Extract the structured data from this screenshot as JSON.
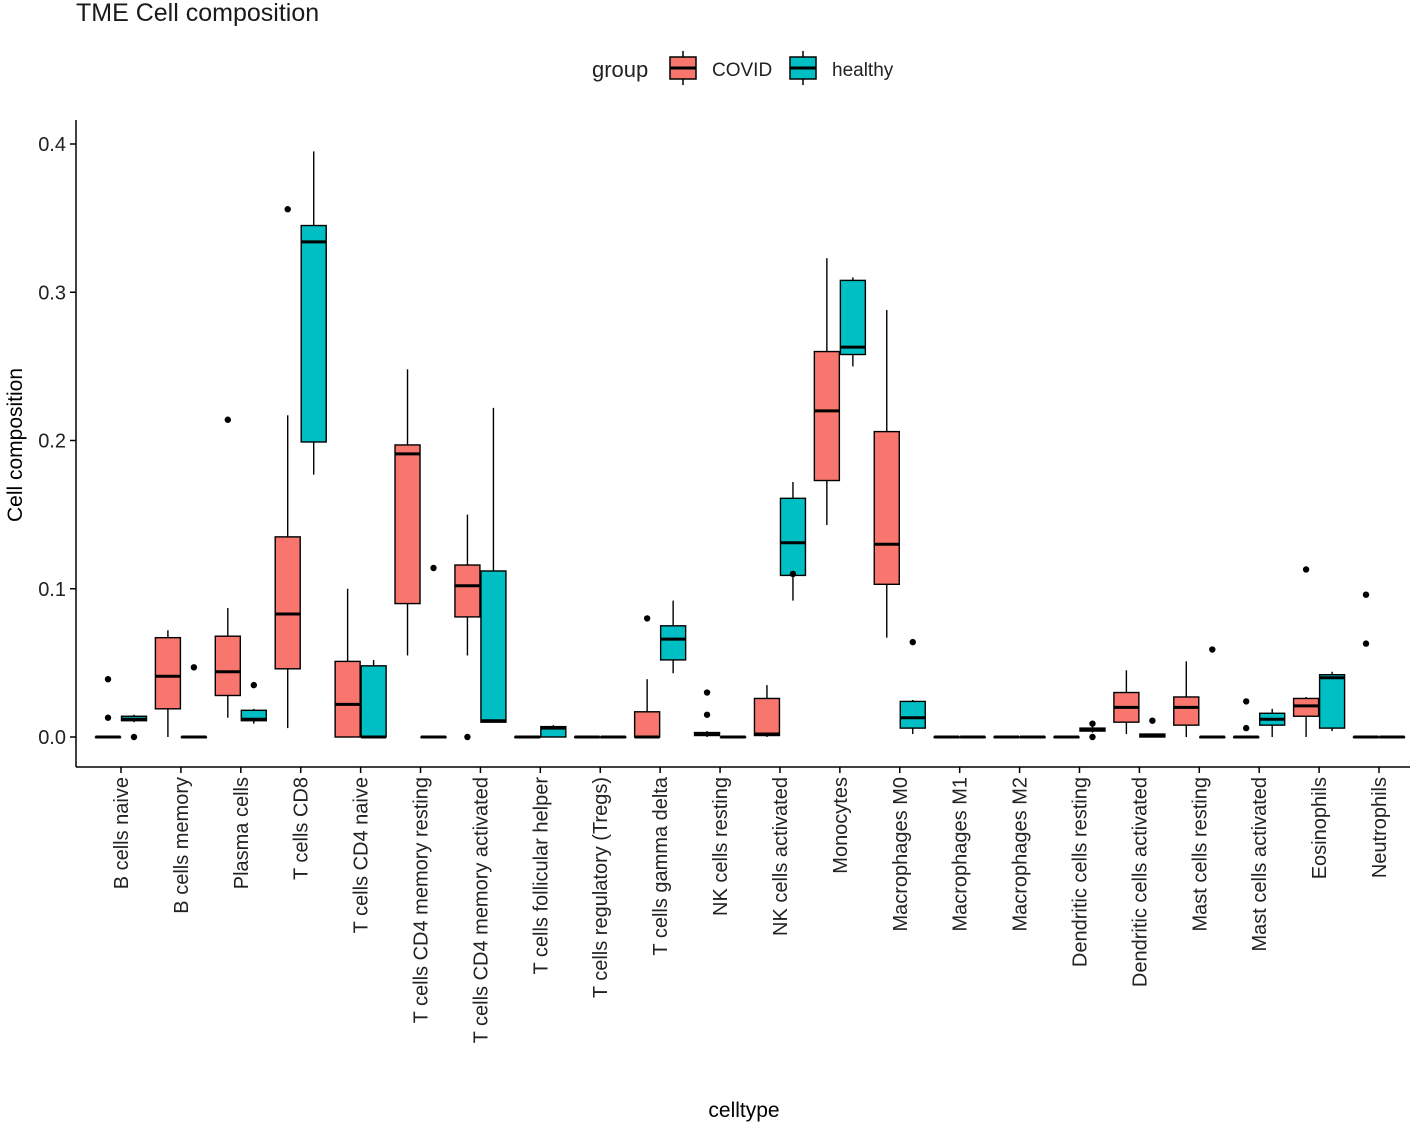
{
  "chart_data": {
    "type": "boxplot",
    "title": "TME Cell composition",
    "xlabel": "celltype",
    "ylabel": "Cell composition",
    "ylim": [
      -0.02,
      0.42
    ],
    "yticks": [
      0.0,
      0.1,
      0.2,
      0.3,
      0.4
    ],
    "ytick_labels": [
      "0.0",
      "0.1",
      "0.2",
      "0.3",
      "0.4"
    ],
    "legend": {
      "title": "group",
      "position": "top",
      "entries": [
        {
          "name": "COVID",
          "color": "#F8766D"
        },
        {
          "name": "healthy",
          "color": "#00BFC4"
        }
      ]
    },
    "categories": [
      "B cells naive",
      "B cells memory",
      "Plasma cells",
      "T cells CD8",
      "T cells CD4 naive",
      "T cells CD4 memory resting",
      "T cells CD4 memory activated",
      "T cells follicular helper",
      "T cells regulatory (Tregs)",
      "T cells gamma delta",
      "NK cells resting",
      "NK cells activated",
      "Monocytes",
      "Macrophages M0",
      "Macrophages M1",
      "Macrophages M2",
      "Dendritic cells resting",
      "Dendritic cells activated",
      "Mast cells resting",
      "Mast cells activated",
      "Eosinophils",
      "Neutrophils"
    ],
    "series": [
      {
        "name": "COVID",
        "color": "#F8766D",
        "boxes": [
          {
            "lo": 0.0,
            "q1": 0.0,
            "med": 0.0,
            "q3": 0.0,
            "hi": 0.0,
            "out": [
              0.013,
              0.039
            ]
          },
          {
            "lo": 0.0,
            "q1": 0.019,
            "med": 0.041,
            "q3": 0.067,
            "hi": 0.072,
            "out": []
          },
          {
            "lo": 0.013,
            "q1": 0.028,
            "med": 0.044,
            "q3": 0.068,
            "hi": 0.087,
            "out": [
              0.214
            ]
          },
          {
            "lo": 0.006,
            "q1": 0.046,
            "med": 0.083,
            "q3": 0.135,
            "hi": 0.217,
            "out": [
              0.356
            ]
          },
          {
            "lo": 0.0,
            "q1": 0.0,
            "med": 0.022,
            "q3": 0.051,
            "hi": 0.1,
            "out": []
          },
          {
            "lo": 0.055,
            "q1": 0.09,
            "med": 0.191,
            "q3": 0.197,
            "hi": 0.248,
            "out": []
          },
          {
            "lo": 0.055,
            "q1": 0.081,
            "med": 0.102,
            "q3": 0.116,
            "hi": 0.15,
            "out": [
              0.0
            ]
          },
          {
            "lo": 0.0,
            "q1": 0.0,
            "med": 0.0,
            "q3": 0.0,
            "hi": 0.0,
            "out": []
          },
          {
            "lo": 0.0,
            "q1": 0.0,
            "med": 0.0,
            "q3": 0.0,
            "hi": 0.0,
            "out": []
          },
          {
            "lo": 0.0,
            "q1": 0.0,
            "med": 0.0,
            "q3": 0.017,
            "hi": 0.039,
            "out": [
              0.08
            ]
          },
          {
            "lo": 0.0,
            "q1": 0.001,
            "med": 0.002,
            "q3": 0.003,
            "hi": 0.004,
            "out": [
              0.015,
              0.03
            ]
          },
          {
            "lo": 0.0,
            "q1": 0.001,
            "med": 0.002,
            "q3": 0.026,
            "hi": 0.035,
            "out": []
          },
          {
            "lo": 0.143,
            "q1": 0.173,
            "med": 0.22,
            "q3": 0.26,
            "hi": 0.323,
            "out": []
          },
          {
            "lo": 0.067,
            "q1": 0.103,
            "med": 0.13,
            "q3": 0.206,
            "hi": 0.288,
            "out": []
          },
          {
            "lo": 0.0,
            "q1": 0.0,
            "med": 0.0,
            "q3": 0.0,
            "hi": 0.0,
            "out": []
          },
          {
            "lo": 0.0,
            "q1": 0.0,
            "med": 0.0,
            "q3": 0.0,
            "hi": 0.0,
            "out": []
          },
          {
            "lo": 0.0,
            "q1": 0.0,
            "med": 0.0,
            "q3": 0.0,
            "hi": 0.0,
            "out": []
          },
          {
            "lo": 0.002,
            "q1": 0.01,
            "med": 0.02,
            "q3": 0.03,
            "hi": 0.045,
            "out": []
          },
          {
            "lo": 0.0,
            "q1": 0.008,
            "med": 0.02,
            "q3": 0.027,
            "hi": 0.051,
            "out": []
          },
          {
            "lo": 0.0,
            "q1": 0.0,
            "med": 0.0,
            "q3": 0.0,
            "hi": 0.0,
            "out": [
              0.006,
              0.024
            ]
          },
          {
            "lo": 0.0,
            "q1": 0.014,
            "med": 0.021,
            "q3": 0.026,
            "hi": 0.027,
            "out": [
              0.113
            ]
          },
          {
            "lo": 0.0,
            "q1": 0.0,
            "med": 0.0,
            "q3": 0.0,
            "hi": 0.0,
            "out": [
              0.063,
              0.096
            ]
          }
        ]
      },
      {
        "name": "healthy",
        "color": "#00BFC4",
        "boxes": [
          {
            "lo": 0.01,
            "q1": 0.011,
            "med": 0.012,
            "q3": 0.014,
            "hi": 0.015,
            "out": [
              0.0
            ]
          },
          {
            "lo": 0.0,
            "q1": 0.0,
            "med": 0.0,
            "q3": 0.0,
            "hi": 0.0,
            "out": [
              0.047
            ]
          },
          {
            "lo": 0.009,
            "q1": 0.011,
            "med": 0.012,
            "q3": 0.018,
            "hi": 0.019,
            "out": [
              0.035
            ]
          },
          {
            "lo": 0.177,
            "q1": 0.199,
            "med": 0.334,
            "q3": 0.345,
            "hi": 0.395,
            "out": []
          },
          {
            "lo": 0.0,
            "q1": 0.0,
            "med": 0.0,
            "q3": 0.048,
            "hi": 0.052,
            "out": []
          },
          {
            "lo": 0.0,
            "q1": 0.0,
            "med": 0.0,
            "q3": 0.0,
            "hi": 0.0,
            "out": [
              0.114
            ]
          },
          {
            "lo": 0.01,
            "q1": 0.01,
            "med": 0.011,
            "q3": 0.112,
            "hi": 0.222,
            "out": []
          },
          {
            "lo": 0.0,
            "q1": 0.0,
            "med": 0.006,
            "q3": 0.007,
            "hi": 0.008,
            "out": []
          },
          {
            "lo": 0.0,
            "q1": 0.0,
            "med": 0.0,
            "q3": 0.0,
            "hi": 0.0,
            "out": []
          },
          {
            "lo": 0.043,
            "q1": 0.052,
            "med": 0.066,
            "q3": 0.075,
            "hi": 0.092,
            "out": []
          },
          {
            "lo": 0.0,
            "q1": 0.0,
            "med": 0.0,
            "q3": 0.0,
            "hi": 0.0,
            "out": []
          },
          {
            "lo": 0.092,
            "q1": 0.109,
            "med": 0.131,
            "q3": 0.161,
            "hi": 0.172,
            "out": [
              0.11
            ]
          },
          {
            "lo": 0.25,
            "q1": 0.258,
            "med": 0.263,
            "q3": 0.308,
            "hi": 0.31,
            "out": []
          },
          {
            "lo": 0.002,
            "q1": 0.006,
            "med": 0.013,
            "q3": 0.024,
            "hi": 0.025,
            "out": [
              0.064
            ]
          },
          {
            "lo": 0.0,
            "q1": 0.0,
            "med": 0.0,
            "q3": 0.0,
            "hi": 0.0,
            "out": []
          },
          {
            "lo": 0.0,
            "q1": 0.0,
            "med": 0.0,
            "q3": 0.0,
            "hi": 0.0,
            "out": []
          },
          {
            "lo": 0.003,
            "q1": 0.004,
            "med": 0.005,
            "q3": 0.006,
            "hi": 0.007,
            "out": [
              0.0,
              0.009
            ]
          },
          {
            "lo": 0.0,
            "q1": 0.0,
            "med": 0.001,
            "q3": 0.002,
            "hi": 0.002,
            "out": [
              0.011
            ]
          },
          {
            "lo": 0.0,
            "q1": 0.0,
            "med": 0.0,
            "q3": 0.0,
            "hi": 0.0,
            "out": [
              0.059
            ]
          },
          {
            "lo": 0.0,
            "q1": 0.008,
            "med": 0.012,
            "q3": 0.016,
            "hi": 0.019,
            "out": []
          },
          {
            "lo": 0.004,
            "q1": 0.006,
            "med": 0.04,
            "q3": 0.042,
            "hi": 0.044,
            "out": []
          },
          {
            "lo": 0.0,
            "q1": 0.0,
            "med": 0.0,
            "q3": 0.0,
            "hi": 0.0,
            "out": []
          }
        ]
      }
    ]
  }
}
